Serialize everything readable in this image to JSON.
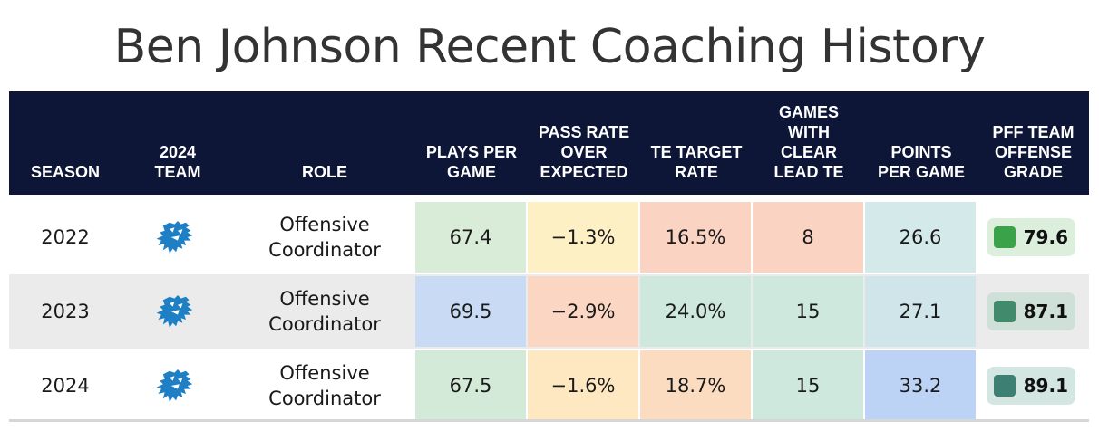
{
  "title": "Ben Johnson Recent Coaching History",
  "headers": [
    [
      "SEASON"
    ],
    [
      "2024",
      "TEAM"
    ],
    [
      "ROLE"
    ],
    [
      "PLAYS PER",
      "GAME"
    ],
    [
      "PASS RATE",
      "OVER",
      "EXPECTED"
    ],
    [
      "TE TARGET",
      "RATE"
    ],
    [
      "GAMES",
      "WITH",
      "CLEAR",
      "LEAD TE"
    ],
    [
      "POINTS",
      "PER GAME"
    ],
    [
      "PFF TEAM",
      "OFFENSE",
      "GRADE"
    ]
  ],
  "rows": [
    {
      "season": "2022",
      "team_icon": "lions-logo-icon",
      "role": [
        "Offensive",
        "Coordinator"
      ],
      "plays_per_game": "67.4",
      "pass_rate_over_expected": "−1.3%",
      "te_target_rate": "16.5%",
      "games_clear_lead_te": "8",
      "points_per_game": "26.6",
      "pff_grade": "79.6",
      "colors": {
        "plays": "#d8ecd8",
        "proe": "#fdf0c4",
        "te": "#fbd3c3",
        "games": "#fbd3c3",
        "points": "#d3e9ea",
        "grade_bg": "#dcefdc",
        "grade_swatch": "#3aa34a"
      }
    },
    {
      "season": "2023",
      "team_icon": "lions-logo-icon",
      "role": [
        "Offensive",
        "Coordinator"
      ],
      "plays_per_game": "69.5",
      "pass_rate_over_expected": "−2.9%",
      "te_target_rate": "24.0%",
      "games_clear_lead_te": "15",
      "points_per_game": "27.1",
      "pff_grade": "87.1",
      "colors": {
        "plays": "#c9dbf4",
        "proe": "#fbd7c3",
        "te": "#cfe8de",
        "games": "#cfe8de",
        "points": "#cfe5ea",
        "grade_bg": "#cfe0d8",
        "grade_swatch": "#418a6c"
      }
    },
    {
      "season": "2024",
      "team_icon": "lions-logo-icon",
      "role": [
        "Offensive",
        "Coordinator"
      ],
      "plays_per_game": "67.5",
      "pass_rate_over_expected": "−1.6%",
      "te_target_rate": "18.7%",
      "games_clear_lead_te": "15",
      "points_per_game": "33.2",
      "pff_grade": "89.1",
      "colors": {
        "plays": "#d4ead8",
        "proe": "#fde8c2",
        "te": "#fbdcc1",
        "games": "#cfe8de",
        "points": "#bcd3f6",
        "grade_bg": "#d4e6e2",
        "grade_swatch": "#3e7f74"
      }
    }
  ]
}
